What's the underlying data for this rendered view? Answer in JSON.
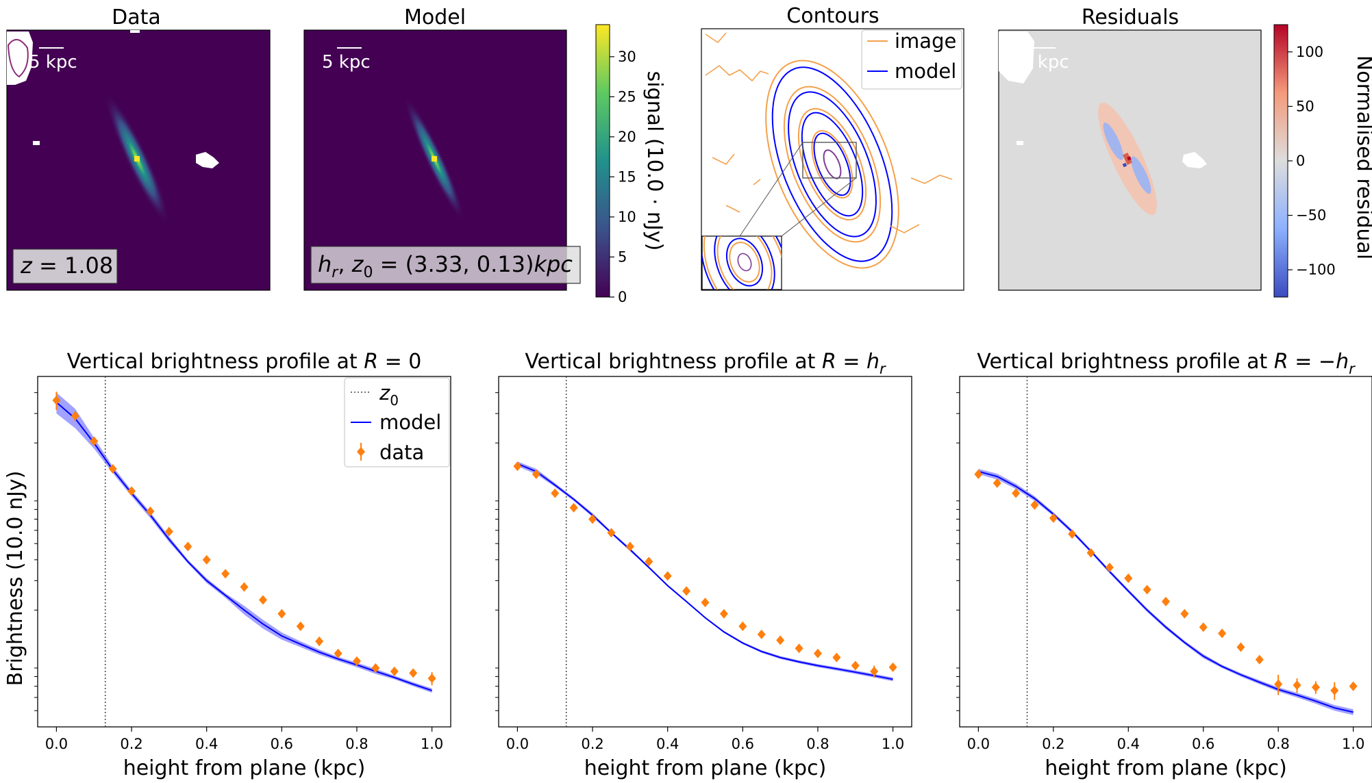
{
  "colors": {
    "viridis_dark": "#440154",
    "viridis_peak": "#fde725",
    "image_contour": "#ff8c00",
    "model_line": "#0000ff",
    "model_band": "#5555ff",
    "data_points": "#ff7f0e",
    "residual_bg": "#dcdcdc"
  },
  "top": {
    "data": {
      "title": "Data",
      "scalebar": "5 kpc",
      "label": "z = 1.08"
    },
    "model": {
      "title": "Model",
      "scalebar": "5 kpc",
      "label": "h_r, z_0 = (3.33, 0.13)kpc",
      "colorbar": {
        "label": "signal (10.0 · nJy)",
        "ticks": [
          0,
          5,
          10,
          15,
          20,
          25,
          30
        ],
        "range": [
          0,
          34
        ]
      }
    },
    "contours": {
      "title": "Contours",
      "legend": [
        "image",
        "model"
      ]
    },
    "residuals": {
      "title": "Residuals",
      "scalebar": "5 kpc",
      "colorbar": {
        "label": "Normalised residual",
        "ticks": [
          100,
          50,
          0,
          -50,
          -100
        ],
        "range": [
          -125,
          125
        ]
      }
    }
  },
  "chart_data": [
    {
      "type": "line",
      "title": "Vertical brightness profile at R = 0",
      "title_parts": [
        "Vertical brightness profile at ",
        "R",
        " = 0"
      ],
      "xlabel": "height from plane (kpc)",
      "ylabel": "Brightness (10.0 nJy)",
      "yscale": "log",
      "xlim": [
        -0.05,
        1.05
      ],
      "xticks": [
        "0.0",
        "0.2",
        "0.4",
        "0.6",
        "0.8",
        "1.0"
      ],
      "z0": 0.13,
      "legend": [
        "z0",
        "model",
        "data"
      ],
      "legend_position": "top-right",
      "model": {
        "x": [
          0,
          0.05,
          0.1,
          0.15,
          0.2,
          0.25,
          0.3,
          0.35,
          0.4,
          0.45,
          0.5,
          0.55,
          0.6,
          0.65,
          0.7,
          0.75,
          0.8,
          0.85,
          0.9,
          0.95,
          1.0
        ],
        "y": [
          3.5,
          2.8,
          2.0,
          1.38,
          1.0,
          0.74,
          0.53,
          0.39,
          0.3,
          0.245,
          0.2,
          0.165,
          0.14,
          0.125,
          0.112,
          0.102,
          0.094,
          0.086,
          0.079,
          0.072,
          0.066
        ],
        "band_lo": [
          3.0,
          2.45,
          1.85,
          1.32,
          0.96,
          0.71,
          0.51,
          0.38,
          0.29,
          0.237,
          0.188,
          0.155,
          0.133,
          0.12,
          0.108,
          0.099,
          0.091,
          0.083,
          0.077,
          0.07,
          0.064
        ],
        "band_hi": [
          4.0,
          3.2,
          2.15,
          1.45,
          1.04,
          0.77,
          0.55,
          0.4,
          0.31,
          0.252,
          0.212,
          0.175,
          0.147,
          0.13,
          0.116,
          0.105,
          0.097,
          0.089,
          0.081,
          0.074,
          0.068
        ]
      },
      "data": {
        "x": [
          0,
          0.05,
          0.1,
          0.15,
          0.2,
          0.25,
          0.3,
          0.35,
          0.4,
          0.45,
          0.5,
          0.55,
          0.6,
          0.65,
          0.7,
          0.75,
          0.8,
          0.85,
          0.9,
          0.95,
          1.0
        ],
        "y": [
          3.6,
          2.9,
          2.05,
          1.4,
          1.03,
          0.78,
          0.59,
          0.48,
          0.4,
          0.33,
          0.275,
          0.23,
          0.19,
          0.16,
          0.13,
          0.11,
          0.099,
          0.09,
          0.086,
          0.084,
          0.078
        ],
        "err": [
          0.45,
          0.2,
          0.1,
          0.05,
          0.03,
          0.02,
          0.015,
          0.012,
          0.01,
          0.008,
          0.007,
          0.006,
          0.006,
          0.006,
          0.008,
          0.005,
          0.005,
          0.004,
          0.004,
          0.004,
          0.007
        ]
      }
    },
    {
      "type": "line",
      "title": "Vertical brightness profile at R = h_r",
      "title_parts": [
        "Vertical brightness profile at ",
        "R",
        " = ",
        "h",
        "r"
      ],
      "xlabel": "height from plane (kpc)",
      "yscale": "log",
      "xlim": [
        -0.05,
        1.05
      ],
      "xticks": [
        "0.0",
        "0.2",
        "0.4",
        "0.6",
        "0.8",
        "1.0"
      ],
      "z0": 0.13,
      "model": {
        "x": [
          0,
          0.05,
          0.1,
          0.15,
          0.2,
          0.25,
          0.3,
          0.35,
          0.4,
          0.45,
          0.5,
          0.55,
          0.6,
          0.65,
          0.7,
          0.75,
          0.8,
          0.85,
          0.9,
          0.95,
          1.0
        ],
        "y": [
          1.5,
          1.35,
          1.12,
          0.92,
          0.74,
          0.58,
          0.46,
          0.36,
          0.28,
          0.225,
          0.18,
          0.148,
          0.127,
          0.113,
          0.104,
          0.098,
          0.093,
          0.089,
          0.085,
          0.081,
          0.077
        ],
        "band_lo": [
          1.45,
          1.3,
          1.09,
          0.9,
          0.72,
          0.57,
          0.45,
          0.355,
          0.276,
          0.222,
          0.178,
          0.146,
          0.125,
          0.111,
          0.102,
          0.096,
          0.091,
          0.087,
          0.083,
          0.079,
          0.075
        ],
        "band_hi": [
          1.55,
          1.4,
          1.15,
          0.94,
          0.76,
          0.59,
          0.47,
          0.365,
          0.284,
          0.228,
          0.182,
          0.15,
          0.129,
          0.115,
          0.106,
          0.1,
          0.095,
          0.091,
          0.087,
          0.083,
          0.079
        ]
      },
      "data": {
        "x": [
          0,
          0.05,
          0.1,
          0.15,
          0.2,
          0.25,
          0.3,
          0.35,
          0.4,
          0.45,
          0.5,
          0.55,
          0.6,
          0.65,
          0.7,
          0.75,
          0.8,
          0.85,
          0.9,
          0.95,
          1.0
        ],
        "y": [
          1.45,
          1.3,
          1.0,
          0.82,
          0.7,
          0.58,
          0.48,
          0.39,
          0.32,
          0.26,
          0.222,
          0.19,
          0.16,
          0.143,
          0.132,
          0.118,
          0.11,
          0.104,
          0.093,
          0.086,
          0.091
        ],
        "err": [
          0.02,
          0.015,
          0.012,
          0.01,
          0.008,
          0.007,
          0.006,
          0.006,
          0.005,
          0.005,
          0.004,
          0.004,
          0.004,
          0.004,
          0.004,
          0.003,
          0.003,
          0.003,
          0.005,
          0.007,
          0.005
        ]
      }
    },
    {
      "type": "line",
      "title": "Vertical brightness profile at R = -h_r",
      "title_parts": [
        "Vertical brightness profile at ",
        "R",
        " = −",
        "h",
        "r"
      ],
      "xlabel": "height from plane (kpc)",
      "yscale": "log",
      "xlim": [
        -0.05,
        1.05
      ],
      "xticks": [
        "0.0",
        "0.2",
        "0.4",
        "0.6",
        "0.8",
        "1.0"
      ],
      "z0": 0.13,
      "model": {
        "x": [
          0,
          0.05,
          0.1,
          0.15,
          0.2,
          0.25,
          0.3,
          0.35,
          0.4,
          0.45,
          0.5,
          0.55,
          0.6,
          0.65,
          0.7,
          0.75,
          0.8,
          0.85,
          0.9,
          0.95,
          1.0
        ],
        "y": [
          1.35,
          1.26,
          1.1,
          0.93,
          0.75,
          0.59,
          0.45,
          0.34,
          0.26,
          0.2,
          0.158,
          0.128,
          0.106,
          0.092,
          0.082,
          0.074,
          0.067,
          0.062,
          0.057,
          0.052,
          0.049
        ],
        "band_lo": [
          1.3,
          1.21,
          1.06,
          0.9,
          0.73,
          0.575,
          0.44,
          0.332,
          0.254,
          0.195,
          0.154,
          0.125,
          0.103,
          0.09,
          0.08,
          0.072,
          0.065,
          0.06,
          0.055,
          0.05,
          0.047
        ],
        "band_hi": [
          1.4,
          1.31,
          1.14,
          0.96,
          0.77,
          0.605,
          0.46,
          0.348,
          0.266,
          0.205,
          0.162,
          0.131,
          0.109,
          0.094,
          0.084,
          0.076,
          0.069,
          0.064,
          0.059,
          0.054,
          0.051
        ]
      },
      "data": {
        "x": [
          0,
          0.05,
          0.1,
          0.15,
          0.2,
          0.25,
          0.3,
          0.35,
          0.4,
          0.45,
          0.5,
          0.55,
          0.6,
          0.65,
          0.7,
          0.75,
          0.8,
          0.85,
          0.9,
          0.95,
          1.0
        ],
        "y": [
          1.3,
          1.15,
          1.0,
          0.85,
          0.71,
          0.57,
          0.44,
          0.36,
          0.31,
          0.265,
          0.225,
          0.19,
          0.158,
          0.145,
          0.12,
          0.101,
          0.072,
          0.071,
          0.069,
          0.066,
          0.07
        ],
        "err": [
          0.02,
          0.015,
          0.012,
          0.01,
          0.008,
          0.007,
          0.006,
          0.006,
          0.005,
          0.005,
          0.004,
          0.004,
          0.004,
          0.004,
          0.006,
          0.004,
          0.01,
          0.007,
          0.006,
          0.008,
          0.004
        ]
      }
    }
  ]
}
